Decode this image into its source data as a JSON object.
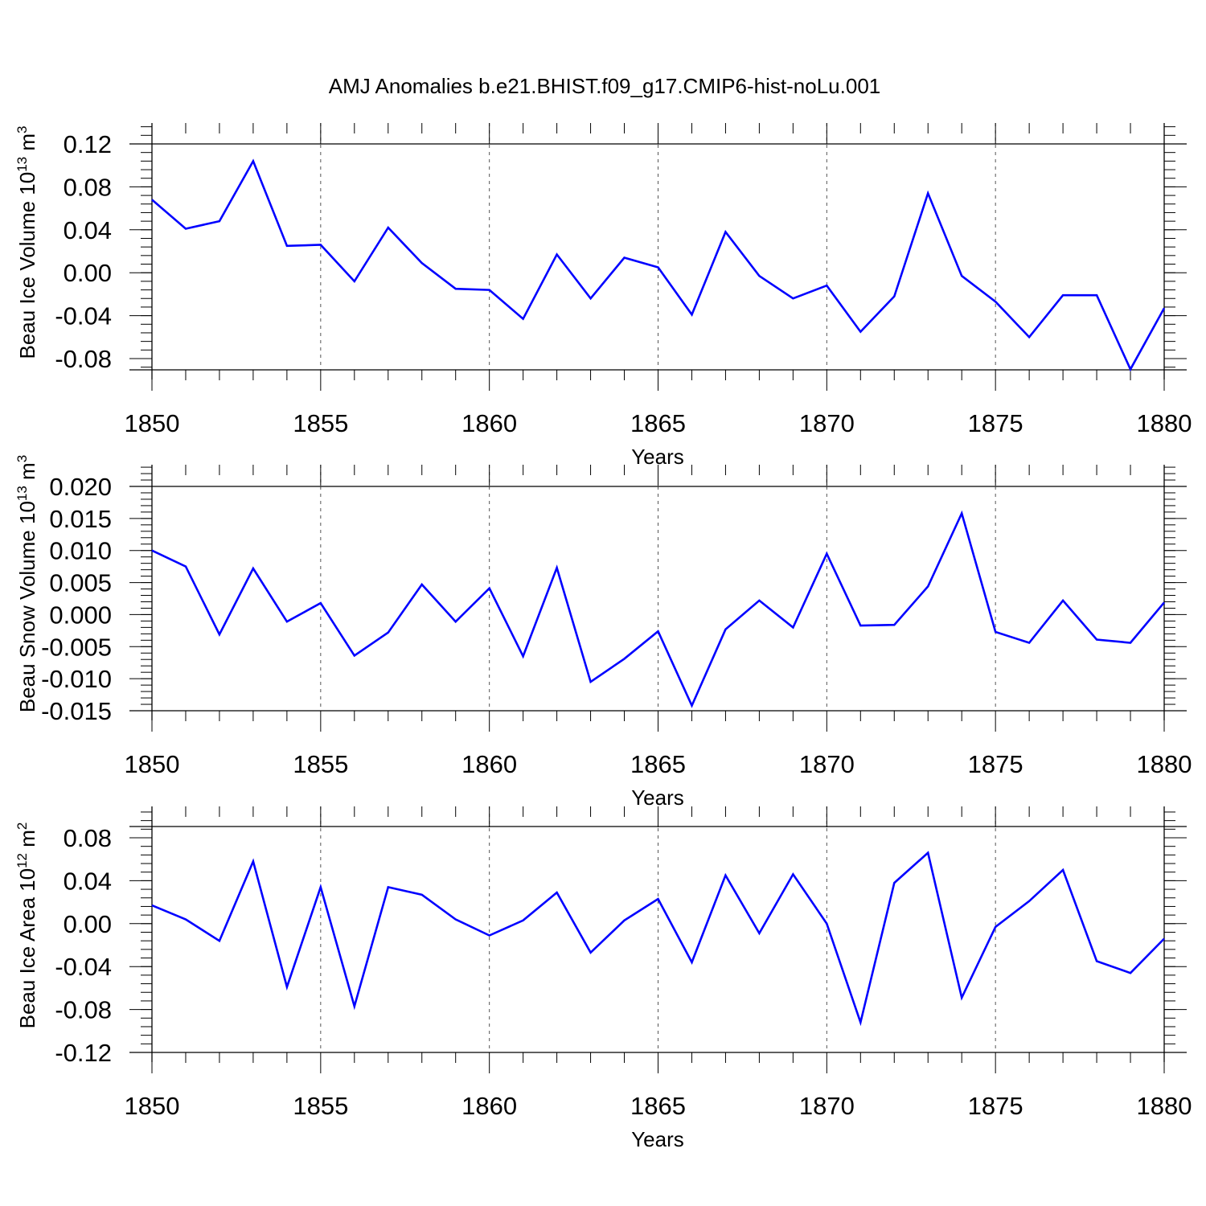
{
  "chart_data": [
    {
      "type": "line",
      "title": "AMJ Anomalies b.e21.BHIST.f09_g17.CMIP6-hist-noLu.001",
      "xlabel": "Years",
      "ylabel": "Beau Ice Volume 10",
      "ylabel_exponent": "13",
      "ylabel_unit": " m",
      "ylabel_unit_exponent": "3",
      "xlim": [
        1850,
        1880
      ],
      "ylim": [
        -0.09,
        0.12
      ],
      "y_ticks": [
        "0.12",
        "0.08",
        "0.04",
        "0.00",
        "-0.04",
        "-0.08"
      ],
      "y_tick_values": [
        0.12,
        0.08,
        0.04,
        0.0,
        -0.04,
        -0.08
      ],
      "x_ticks": [
        "1850",
        "1855",
        "1860",
        "1865",
        "1870",
        "1875",
        "1880"
      ],
      "x_tick_values": [
        1850,
        1855,
        1860,
        1865,
        1870,
        1875,
        1880
      ],
      "series": [
        {
          "name": "Beau Ice Volume",
          "color": "#0000ff",
          "x": [
            1850,
            1851,
            1852,
            1853,
            1854,
            1855,
            1856,
            1857,
            1858,
            1859,
            1860,
            1861,
            1862,
            1863,
            1864,
            1865,
            1866,
            1867,
            1868,
            1869,
            1870,
            1871,
            1872,
            1873,
            1874,
            1875,
            1876,
            1877,
            1878,
            1879,
            1880
          ],
          "values": [
            0.068,
            0.041,
            0.048,
            0.104,
            0.025,
            0.026,
            -0.008,
            0.042,
            0.009,
            -0.015,
            -0.016,
            -0.043,
            0.017,
            -0.024,
            0.014,
            0.005,
            -0.039,
            0.038,
            -0.003,
            -0.024,
            -0.012,
            -0.055,
            -0.022,
            0.074,
            -0.003,
            -0.027,
            -0.06,
            -0.021,
            -0.021,
            -0.09,
            -0.033
          ]
        }
      ]
    },
    {
      "type": "line",
      "title": "",
      "xlabel": "Years",
      "ylabel": "Beau Snow Volume 10",
      "ylabel_exponent": "13",
      "ylabel_unit": " m",
      "ylabel_unit_exponent": "3",
      "xlim": [
        1850,
        1880
      ],
      "ylim": [
        -0.015,
        0.02
      ],
      "y_ticks": [
        "0.020",
        "0.015",
        "0.010",
        "0.005",
        "0.000",
        "-0.005",
        "-0.010",
        "-0.015"
      ],
      "y_tick_values": [
        0.02,
        0.015,
        0.01,
        0.005,
        0.0,
        -0.005,
        -0.01,
        -0.015
      ],
      "x_ticks": [
        "1850",
        "1855",
        "1860",
        "1865",
        "1870",
        "1875",
        "1880"
      ],
      "x_tick_values": [
        1850,
        1855,
        1860,
        1865,
        1870,
        1875,
        1880
      ],
      "series": [
        {
          "name": "Beau Snow Volume",
          "color": "#0000ff",
          "x": [
            1850,
            1851,
            1852,
            1853,
            1854,
            1855,
            1856,
            1857,
            1858,
            1859,
            1860,
            1861,
            1862,
            1863,
            1864,
            1865,
            1866,
            1867,
            1868,
            1869,
            1870,
            1871,
            1872,
            1873,
            1874,
            1875,
            1876,
            1877,
            1878,
            1879,
            1880
          ],
          "values": [
            0.01,
            0.0075,
            -0.0031,
            0.0072,
            -0.0011,
            0.0018,
            -0.0064,
            -0.0028,
            0.0047,
            -0.0011,
            0.0041,
            -0.0065,
            0.0073,
            -0.0105,
            -0.0069,
            -0.0026,
            -0.0142,
            -0.0023,
            0.0022,
            -0.002,
            0.0095,
            -0.0017,
            -0.0016,
            0.0044,
            0.0158,
            -0.0027,
            -0.0044,
            0.0022,
            -0.0039,
            -0.0044,
            0.0019
          ]
        }
      ]
    },
    {
      "type": "line",
      "title": "",
      "xlabel": "Years",
      "ylabel": "Beau Ice Area 10",
      "ylabel_exponent": "12",
      "ylabel_unit": " m",
      "ylabel_unit_exponent": "2",
      "xlim": [
        1850,
        1880
      ],
      "ylim": [
        -0.12,
        0.09
      ],
      "y_ticks": [
        "0.08",
        "0.04",
        "0.00",
        "-0.04",
        "-0.08",
        "-0.12"
      ],
      "y_tick_values": [
        0.08,
        0.04,
        0.0,
        -0.04,
        -0.08,
        -0.12
      ],
      "x_ticks": [
        "1850",
        "1855",
        "1860",
        "1865",
        "1870",
        "1875",
        "1880"
      ],
      "x_tick_values": [
        1850,
        1855,
        1860,
        1865,
        1870,
        1875,
        1880
      ],
      "series": [
        {
          "name": "Beau Ice Area",
          "color": "#0000ff",
          "x": [
            1850,
            1851,
            1852,
            1853,
            1854,
            1855,
            1856,
            1857,
            1858,
            1859,
            1860,
            1861,
            1862,
            1863,
            1864,
            1865,
            1866,
            1867,
            1868,
            1869,
            1870,
            1871,
            1872,
            1873,
            1874,
            1875,
            1876,
            1877,
            1878,
            1879,
            1880
          ],
          "values": [
            0.017,
            0.004,
            -0.016,
            0.058,
            -0.059,
            0.034,
            -0.077,
            0.034,
            0.027,
            0.004,
            -0.011,
            0.003,
            0.029,
            -0.027,
            0.003,
            0.023,
            -0.036,
            0.045,
            -0.009,
            0.046,
            0.0,
            -0.092,
            0.038,
            0.066,
            -0.069,
            -0.003,
            0.021,
            0.05,
            -0.035,
            -0.046,
            -0.014
          ]
        }
      ]
    }
  ]
}
